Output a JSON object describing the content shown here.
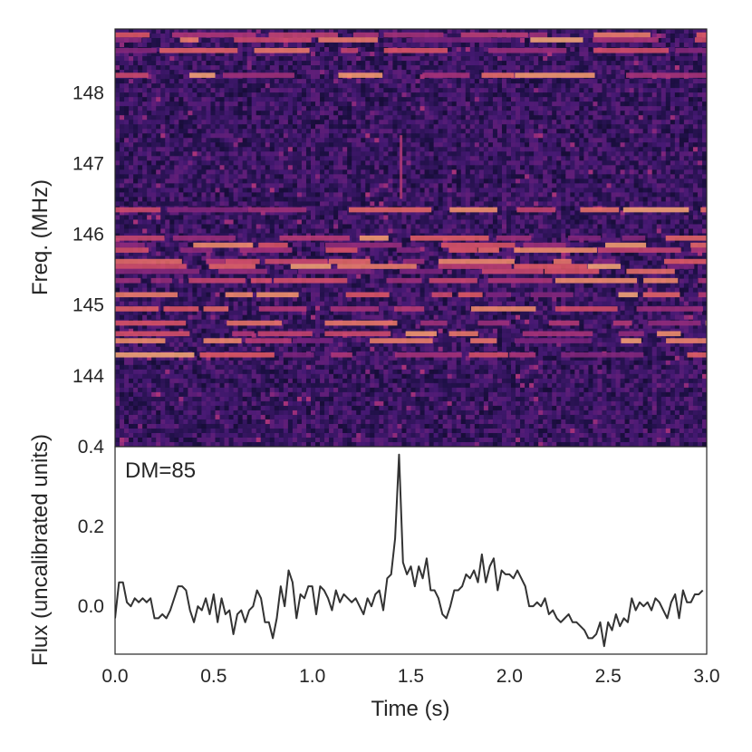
{
  "chart_data": [
    {
      "type": "heatmap",
      "title": "",
      "xlabel": "",
      "ylabel": "Freq. (MHz)",
      "xlim": [
        0.0,
        3.0
      ],
      "ylim": [
        143.0,
        148.9
      ],
      "yticks": [
        144,
        145,
        146,
        147,
        148
      ],
      "ytick_labels": [
        "144",
        "145",
        "146",
        "147",
        "148"
      ],
      "colormap": "magma",
      "bright_channels": [
        148.82,
        148.75,
        148.6,
        148.25,
        146.35,
        145.95,
        145.85,
        145.78,
        145.62,
        145.55,
        145.48,
        145.35,
        145.15,
        144.95,
        144.75,
        144.6,
        144.5,
        144.3
      ],
      "burst": {
        "time": 1.45,
        "freq_range": [
          146.5,
          147.4
        ]
      }
    },
    {
      "type": "line",
      "title": "",
      "annotation": "DM=85",
      "xlabel": "Time (s)",
      "ylabel": "Flux (uncalibrated units)",
      "xlim": [
        0.0,
        3.0
      ],
      "ylim": [
        -0.12,
        0.4
      ],
      "xticks": [
        0.0,
        0.5,
        1.0,
        1.5,
        2.0,
        2.5,
        3.0
      ],
      "xtick_labels": [
        "0.0",
        "0.5",
        "1.0",
        "1.5",
        "2.0",
        "2.5",
        "3.0"
      ],
      "yticks": [
        0.0,
        0.2,
        0.4
      ],
      "ytick_labels": [
        "0.0",
        "0.2",
        "0.4"
      ],
      "line_color": "#333333",
      "x": [
        0.0,
        0.02,
        0.04,
        0.06,
        0.08,
        0.1,
        0.12,
        0.14,
        0.16,
        0.18,
        0.2,
        0.22,
        0.24,
        0.26,
        0.28,
        0.3,
        0.32,
        0.34,
        0.36,
        0.38,
        0.4,
        0.42,
        0.44,
        0.46,
        0.48,
        0.5,
        0.52,
        0.54,
        0.56,
        0.58,
        0.6,
        0.62,
        0.64,
        0.66,
        0.68,
        0.7,
        0.72,
        0.74,
        0.76,
        0.78,
        0.8,
        0.82,
        0.84,
        0.86,
        0.88,
        0.9,
        0.92,
        0.94,
        0.96,
        0.98,
        1.0,
        1.02,
        1.04,
        1.06,
        1.08,
        1.1,
        1.12,
        1.14,
        1.16,
        1.18,
        1.2,
        1.22,
        1.24,
        1.26,
        1.28,
        1.3,
        1.32,
        1.34,
        1.36,
        1.38,
        1.4,
        1.42,
        1.44,
        1.46,
        1.48,
        1.5,
        1.52,
        1.54,
        1.56,
        1.58,
        1.6,
        1.62,
        1.64,
        1.66,
        1.68,
        1.7,
        1.72,
        1.74,
        1.76,
        1.78,
        1.8,
        1.82,
        1.84,
        1.86,
        1.88,
        1.9,
        1.92,
        1.94,
        1.96,
        1.98,
        2.0,
        2.02,
        2.04,
        2.06,
        2.08,
        2.1,
        2.12,
        2.14,
        2.16,
        2.18,
        2.2,
        2.22,
        2.24,
        2.26,
        2.28,
        2.3,
        2.32,
        2.34,
        2.36,
        2.38,
        2.4,
        2.42,
        2.44,
        2.46,
        2.48,
        2.5,
        2.52,
        2.54,
        2.56,
        2.58,
        2.6,
        2.62,
        2.64,
        2.66,
        2.68,
        2.7,
        2.72,
        2.74,
        2.76,
        2.78,
        2.8,
        2.82,
        2.84,
        2.86,
        2.88,
        2.9,
        2.92,
        2.94,
        2.96,
        2.98
      ],
      "values": [
        -0.03,
        0.06,
        0.06,
        0.01,
        0.0,
        0.02,
        0.01,
        0.02,
        0.01,
        0.02,
        -0.03,
        -0.03,
        -0.02,
        -0.03,
        -0.01,
        0.02,
        0.05,
        0.05,
        0.04,
        -0.01,
        -0.04,
        0.0,
        -0.01,
        0.02,
        -0.02,
        0.03,
        -0.04,
        0.02,
        -0.02,
        -0.01,
        -0.07,
        -0.02,
        -0.01,
        -0.04,
        -0.01,
        0.0,
        0.04,
        0.02,
        -0.04,
        -0.04,
        -0.08,
        -0.03,
        0.05,
        0.0,
        0.09,
        0.06,
        -0.03,
        0.03,
        0.02,
        0.05,
        0.05,
        -0.02,
        0.05,
        0.04,
        0.02,
        -0.01,
        0.04,
        0.01,
        0.03,
        0.02,
        0.01,
        0.02,
        0.0,
        -0.02,
        0.02,
        0.0,
        0.03,
        0.04,
        -0.01,
        0.07,
        0.08,
        0.17,
        0.38,
        0.11,
        0.08,
        0.1,
        0.05,
        0.1,
        0.07,
        0.12,
        0.04,
        0.04,
        0.02,
        -0.02,
        -0.03,
        0.0,
        0.04,
        0.04,
        0.05,
        0.08,
        0.07,
        0.09,
        0.06,
        0.13,
        0.06,
        0.1,
        0.12,
        0.04,
        0.09,
        0.08,
        0.08,
        0.07,
        0.09,
        0.07,
        0.05,
        0.0,
        0.0,
        0.01,
        0.0,
        0.02,
        -0.02,
        -0.01,
        -0.03,
        -0.04,
        -0.03,
        -0.02,
        -0.04,
        -0.04,
        -0.05,
        -0.06,
        -0.08,
        -0.08,
        -0.07,
        -0.04,
        -0.1,
        -0.04,
        -0.06,
        -0.02,
        -0.05,
        -0.03,
        -0.04,
        0.02,
        -0.01,
        0.01,
        0.0,
        0.01,
        -0.01,
        0.02,
        0.01,
        -0.01,
        -0.03,
        0.01,
        0.03,
        -0.03,
        0.04,
        0.01,
        0.01,
        0.03,
        0.03,
        0.04
      ]
    }
  ]
}
